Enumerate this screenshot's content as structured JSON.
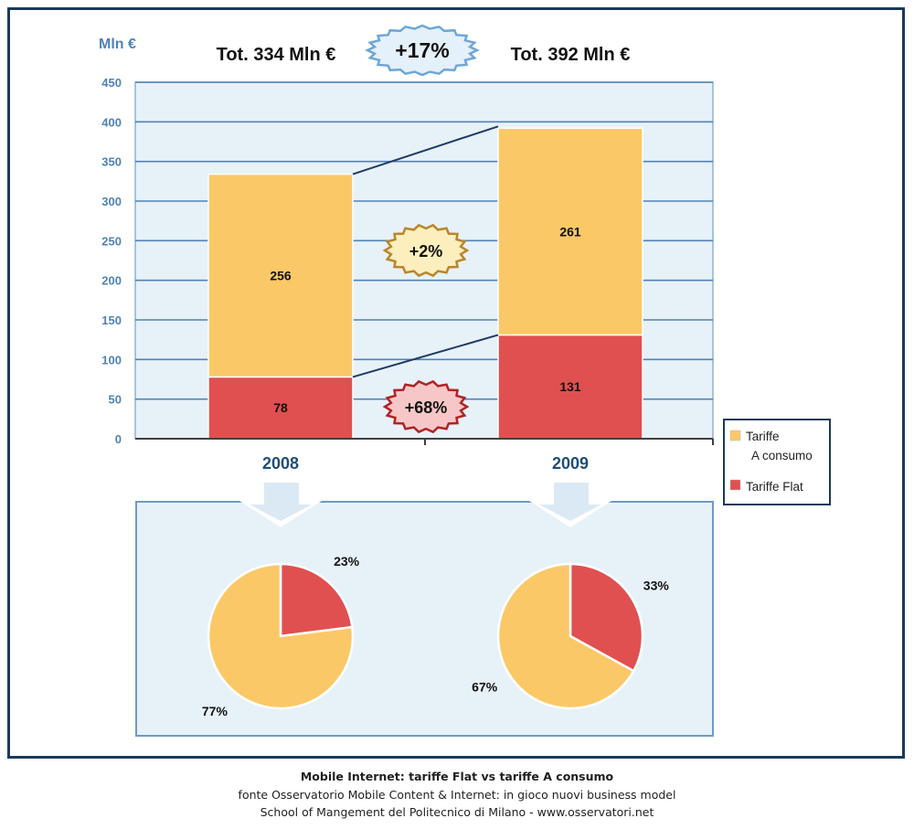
{
  "chart_data": [
    {
      "type": "bar",
      "stacked": true,
      "ylabel": "Mln €",
      "ylim": [
        0,
        450
      ],
      "yticks": [
        0,
        50,
        100,
        150,
        200,
        250,
        300,
        350,
        400,
        450
      ],
      "grid": true,
      "categories": [
        "2008",
        "2009"
      ],
      "series": [
        {
          "name": "Tariffe Flat",
          "color": "#e05050",
          "values": [
            78,
            131
          ]
        },
        {
          "name": "Tariffe A consumo",
          "color": "#fbc867",
          "values": [
            256,
            261
          ]
        }
      ],
      "totals": [
        "Tot. 334 Mln €",
        "Tot. 392 Mln €"
      ],
      "annotations": {
        "total_growth": "+17%",
        "consumo_growth": "+2%",
        "flat_growth": "+68%"
      },
      "legend": {
        "placement": "right",
        "entries": [
          {
            "label": "Tariffe",
            "label2": "A consumo",
            "color": "#fbc867"
          },
          {
            "label": "Tariffe Flat",
            "color": "#e05050"
          }
        ]
      }
    },
    {
      "type": "pie",
      "pies": [
        {
          "category": "2008",
          "slices": [
            {
              "name": "Tariffe Flat",
              "value": 23,
              "label": "23%",
              "color": "#e05050"
            },
            {
              "name": "Tariffe A consumo",
              "value": 77,
              "label": "77%",
              "color": "#fbc867"
            }
          ]
        },
        {
          "category": "2009",
          "slices": [
            {
              "name": "Tariffe Flat",
              "value": 33,
              "label": "33%",
              "color": "#e05050"
            },
            {
              "name": "Tariffe A consumo",
              "value": 67,
              "label": "67%",
              "color": "#fbc867"
            }
          ]
        }
      ]
    }
  ],
  "caption": {
    "line1": "Mobile Internet: tariffe Flat vs tariffe A consumo",
    "line2": "fonte Osservatorio Mobile Content & Internet: in gioco nuovi business model",
    "line3": "School of Mangement del Politecnico di Milano - www.osservatori.net"
  }
}
